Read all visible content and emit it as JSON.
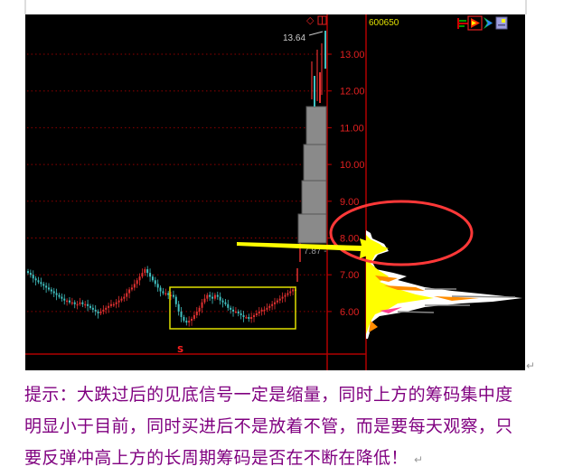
{
  "chart": {
    "stock_code": "600650",
    "high_label": "13.64",
    "price_marker_label": "7.87 -",
    "signal_marker": "S",
    "toolbar_icons": [
      "chip-distribution-icon",
      "flame-chip-icon",
      "arrow-chip-icon",
      "settings-panel-icon"
    ],
    "top_icons": [
      "diamond-icon",
      "window-icon"
    ],
    "colors": {
      "background": "#000000",
      "axis": "#c00000",
      "up": "#e03030",
      "down": "#40c0c0",
      "box": "#e0e000",
      "ellipse": "#ff3030",
      "arrow": "#ffff00",
      "code": "#e0e000"
    }
  },
  "chart_data": {
    "type": "candlestick",
    "y_ticks": [
      "13.00",
      "12.00",
      "11.00",
      "10.00",
      "9.00",
      "8.00",
      "7.00",
      "6.00"
    ],
    "ylim": [
      5.3,
      14.0
    ],
    "closes": [
      7.05,
      7.0,
      6.9,
      6.85,
      6.8,
      6.75,
      6.7,
      6.65,
      6.6,
      6.55,
      6.5,
      6.45,
      6.4,
      6.35,
      6.3,
      6.3,
      6.25,
      6.25,
      6.2,
      6.2,
      6.25,
      6.2,
      6.2,
      6.15,
      6.1,
      6.05,
      6.0,
      5.95,
      6.0,
      6.05,
      6.1,
      6.15,
      6.2,
      6.2,
      6.25,
      6.3,
      6.35,
      6.4,
      6.5,
      6.6,
      6.65,
      6.75,
      6.85,
      6.95,
      7.05,
      7.15,
      7.05,
      6.95,
      6.85,
      6.75,
      6.65,
      6.55,
      6.5,
      6.5,
      6.45,
      6.45,
      6.4,
      6.2,
      6.0,
      5.85,
      5.75,
      5.7,
      5.75,
      5.8,
      5.9,
      6.0,
      6.1,
      6.25,
      6.35,
      6.45,
      6.4,
      6.35,
      6.45,
      6.4,
      6.3,
      6.25,
      6.2,
      6.1,
      6.05,
      6.0,
      6.0,
      5.95,
      5.9,
      5.85,
      5.85,
      5.8,
      5.85,
      5.9,
      5.95,
      6.0,
      6.05,
      6.05,
      6.1,
      6.15,
      6.2,
      6.25,
      6.3,
      6.35,
      6.4,
      6.45,
      6.5,
      6.55,
      6.6,
      6.6
    ],
    "high": 13.64,
    "marker_price": 7.87
  },
  "caption": {
    "lines": [
      "提示：大跌过后的见底信号一定是缩量，同时上方的筹码集中度",
      "明显小于目前，同时买进后不是放着不管，而是要每天观察，只",
      "要反弹冲高上方的长周期筹码是否在不断在降低！"
    ],
    "paragraph_mark": "↵"
  }
}
